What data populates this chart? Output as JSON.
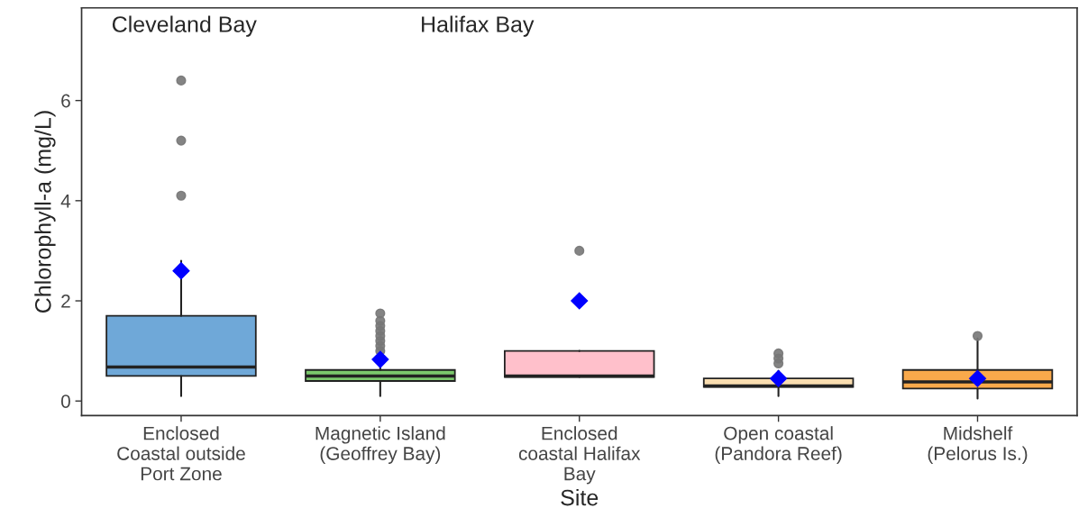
{
  "chart_data": {
    "type": "box",
    "xlabel": "Site",
    "ylabel": "Chlorophyll-a (mg/L)",
    "categories": [
      "Enclosed\nCoastal outside\nPort Zone",
      "Magnetic Island\n(Geoffrey Bay)",
      "Enclosed\ncoastal Halifax\nBay",
      "Open coastal\n(Pandora Reef)",
      "Midshelf\n(Pelorus Is.)"
    ],
    "colors": [
      "#6fa8d8",
      "#7bc86c",
      "#ffc0cb",
      "#f9ddb0",
      "#f9a94b"
    ],
    "boxes": [
      {
        "low": 0.1,
        "q1": 0.5,
        "median": 0.68,
        "q3": 1.7,
        "high": 2.8,
        "mean": 2.6,
        "outliers": [
          4.1,
          5.2,
          6.4
        ]
      },
      {
        "low": 0.1,
        "q1": 0.4,
        "median": 0.5,
        "q3": 0.62,
        "high": 0.95,
        "mean": 0.83,
        "outliers": [
          1.0,
          1.1,
          1.2,
          1.3,
          1.4,
          1.5,
          1.6,
          1.75
        ]
      },
      {
        "low": 0.48,
        "q1": 0.48,
        "median": 0.5,
        "q3": 1.0,
        "high": 1.0,
        "mean": 2.0,
        "outliers": [
          3.0
        ]
      },
      {
        "low": 0.1,
        "q1": 0.28,
        "median": 0.3,
        "q3": 0.45,
        "high": 0.6,
        "mean": 0.45,
        "outliers": [
          0.75,
          0.85,
          0.95
        ]
      },
      {
        "low": 0.05,
        "q1": 0.25,
        "median": 0.38,
        "q3": 0.62,
        "high": 1.25,
        "mean": 0.45,
        "outliers": [
          1.3
        ]
      }
    ],
    "ylim": [
      -0.29,
      7.85
    ],
    "yticks": [
      0,
      2,
      4,
      6
    ],
    "grid": false,
    "annotations": [
      "Cleveland Bay",
      "Halifax Bay"
    ]
  }
}
